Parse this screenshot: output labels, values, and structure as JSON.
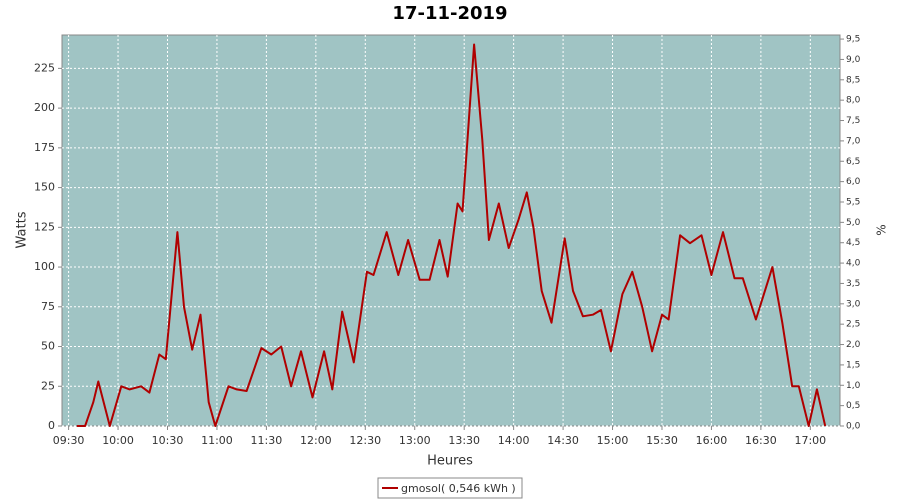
{
  "chart_data": {
    "type": "line",
    "title": "17-11-2019",
    "x_label": "Heures",
    "y_label": "Watts",
    "y2_label": "%",
    "x": [
      "09:35",
      "09:40",
      "09:45",
      "09:48",
      "09:55",
      "10:02",
      "10:07",
      "10:14",
      "10:19",
      "10:25",
      "10:29",
      "10:36",
      "10:40",
      "10:45",
      "10:50",
      "10:55",
      "10:59",
      "11:07",
      "11:12",
      "11:18",
      "11:27",
      "11:33",
      "11:39",
      "11:45",
      "11:51",
      "11:58",
      "12:05",
      "12:10",
      "12:16",
      "12:23",
      "12:31",
      "12:35",
      "12:43",
      "12:50",
      "12:56",
      "13:03",
      "13:09",
      "13:15",
      "13:20",
      "13:26",
      "13:29",
      "13:36",
      "13:41",
      "13:45",
      "13:51",
      "13:57",
      "14:03",
      "14:08",
      "14:12",
      "14:17",
      "14:23",
      "14:31",
      "14:36",
      "14:42",
      "14:48",
      "14:53",
      "14:59",
      "15:06",
      "15:12",
      "15:18",
      "15:24",
      "15:30",
      "15:34",
      "15:41",
      "15:47",
      "15:54",
      "16:00",
      "16:07",
      "16:14",
      "16:19",
      "16:27",
      "16:37",
      "16:43",
      "16:49",
      "16:53",
      "16:59",
      "17:04",
      "17:09"
    ],
    "series": [
      {
        "name": "gmosol( 0,546 kWh )",
        "color": "#b00000",
        "values": [
          0,
          0,
          15,
          28,
          0,
          25,
          23,
          25,
          21,
          45,
          42,
          122,
          75,
          48,
          70,
          15,
          0,
          25,
          23,
          22,
          49,
          45,
          50,
          25,
          47,
          18,
          47,
          23,
          72,
          40,
          97,
          95,
          122,
          95,
          117,
          92,
          92,
          117,
          94,
          140,
          135,
          240,
          180,
          117,
          140,
          112,
          130,
          147,
          125,
          85,
          65,
          118,
          85,
          69,
          70,
          73,
          47,
          83,
          97,
          75,
          47,
          70,
          67,
          120,
          115,
          120,
          95,
          122,
          93,
          93,
          67,
          100,
          65,
          25,
          25,
          0,
          23,
          0
        ]
      }
    ],
    "xlim": [
      "09:26",
      "17:18"
    ],
    "xticks": [
      "09:30",
      "10:00",
      "10:30",
      "11:00",
      "11:30",
      "12:00",
      "12:30",
      "13:00",
      "13:30",
      "14:00",
      "14:30",
      "15:00",
      "15:30",
      "16:00",
      "16:30",
      "17:00"
    ],
    "ylim": [
      0,
      246
    ],
    "yticks": [
      0,
      25,
      50,
      75,
      100,
      125,
      150,
      175,
      200,
      225
    ],
    "y2lim": [
      0,
      9.6
    ],
    "y2ticks": [
      {
        "value": 0,
        "label": "0,0"
      },
      {
        "value": 0.5,
        "label": "0,5"
      },
      {
        "value": 1,
        "label": "1,0"
      },
      {
        "value": 1.5,
        "label": "1,5"
      },
      {
        "value": 2,
        "label": "2,0"
      },
      {
        "value": 2.5,
        "label": "2,5"
      },
      {
        "value": 3,
        "label": "3,0"
      },
      {
        "value": 3.5,
        "label": "3,5"
      },
      {
        "value": 4,
        "label": "4,0"
      },
      {
        "value": 4.5,
        "label": "4,5"
      },
      {
        "value": 5,
        "label": "5,0"
      },
      {
        "value": 5.5,
        "label": "5,5"
      },
      {
        "value": 6,
        "label": "6,0"
      },
      {
        "value": 6.5,
        "label": "6,5"
      },
      {
        "value": 7,
        "label": "7,0"
      },
      {
        "value": 7.5,
        "label": "7,5"
      },
      {
        "value": 8,
        "label": "8,0"
      },
      {
        "value": 8.5,
        "label": "8,5"
      },
      {
        "value": 9,
        "label": "9,0"
      },
      {
        "value": 9.5,
        "label": "9,5"
      }
    ],
    "grid": true,
    "background": "#a0c4c4",
    "legend": "bottom"
  }
}
